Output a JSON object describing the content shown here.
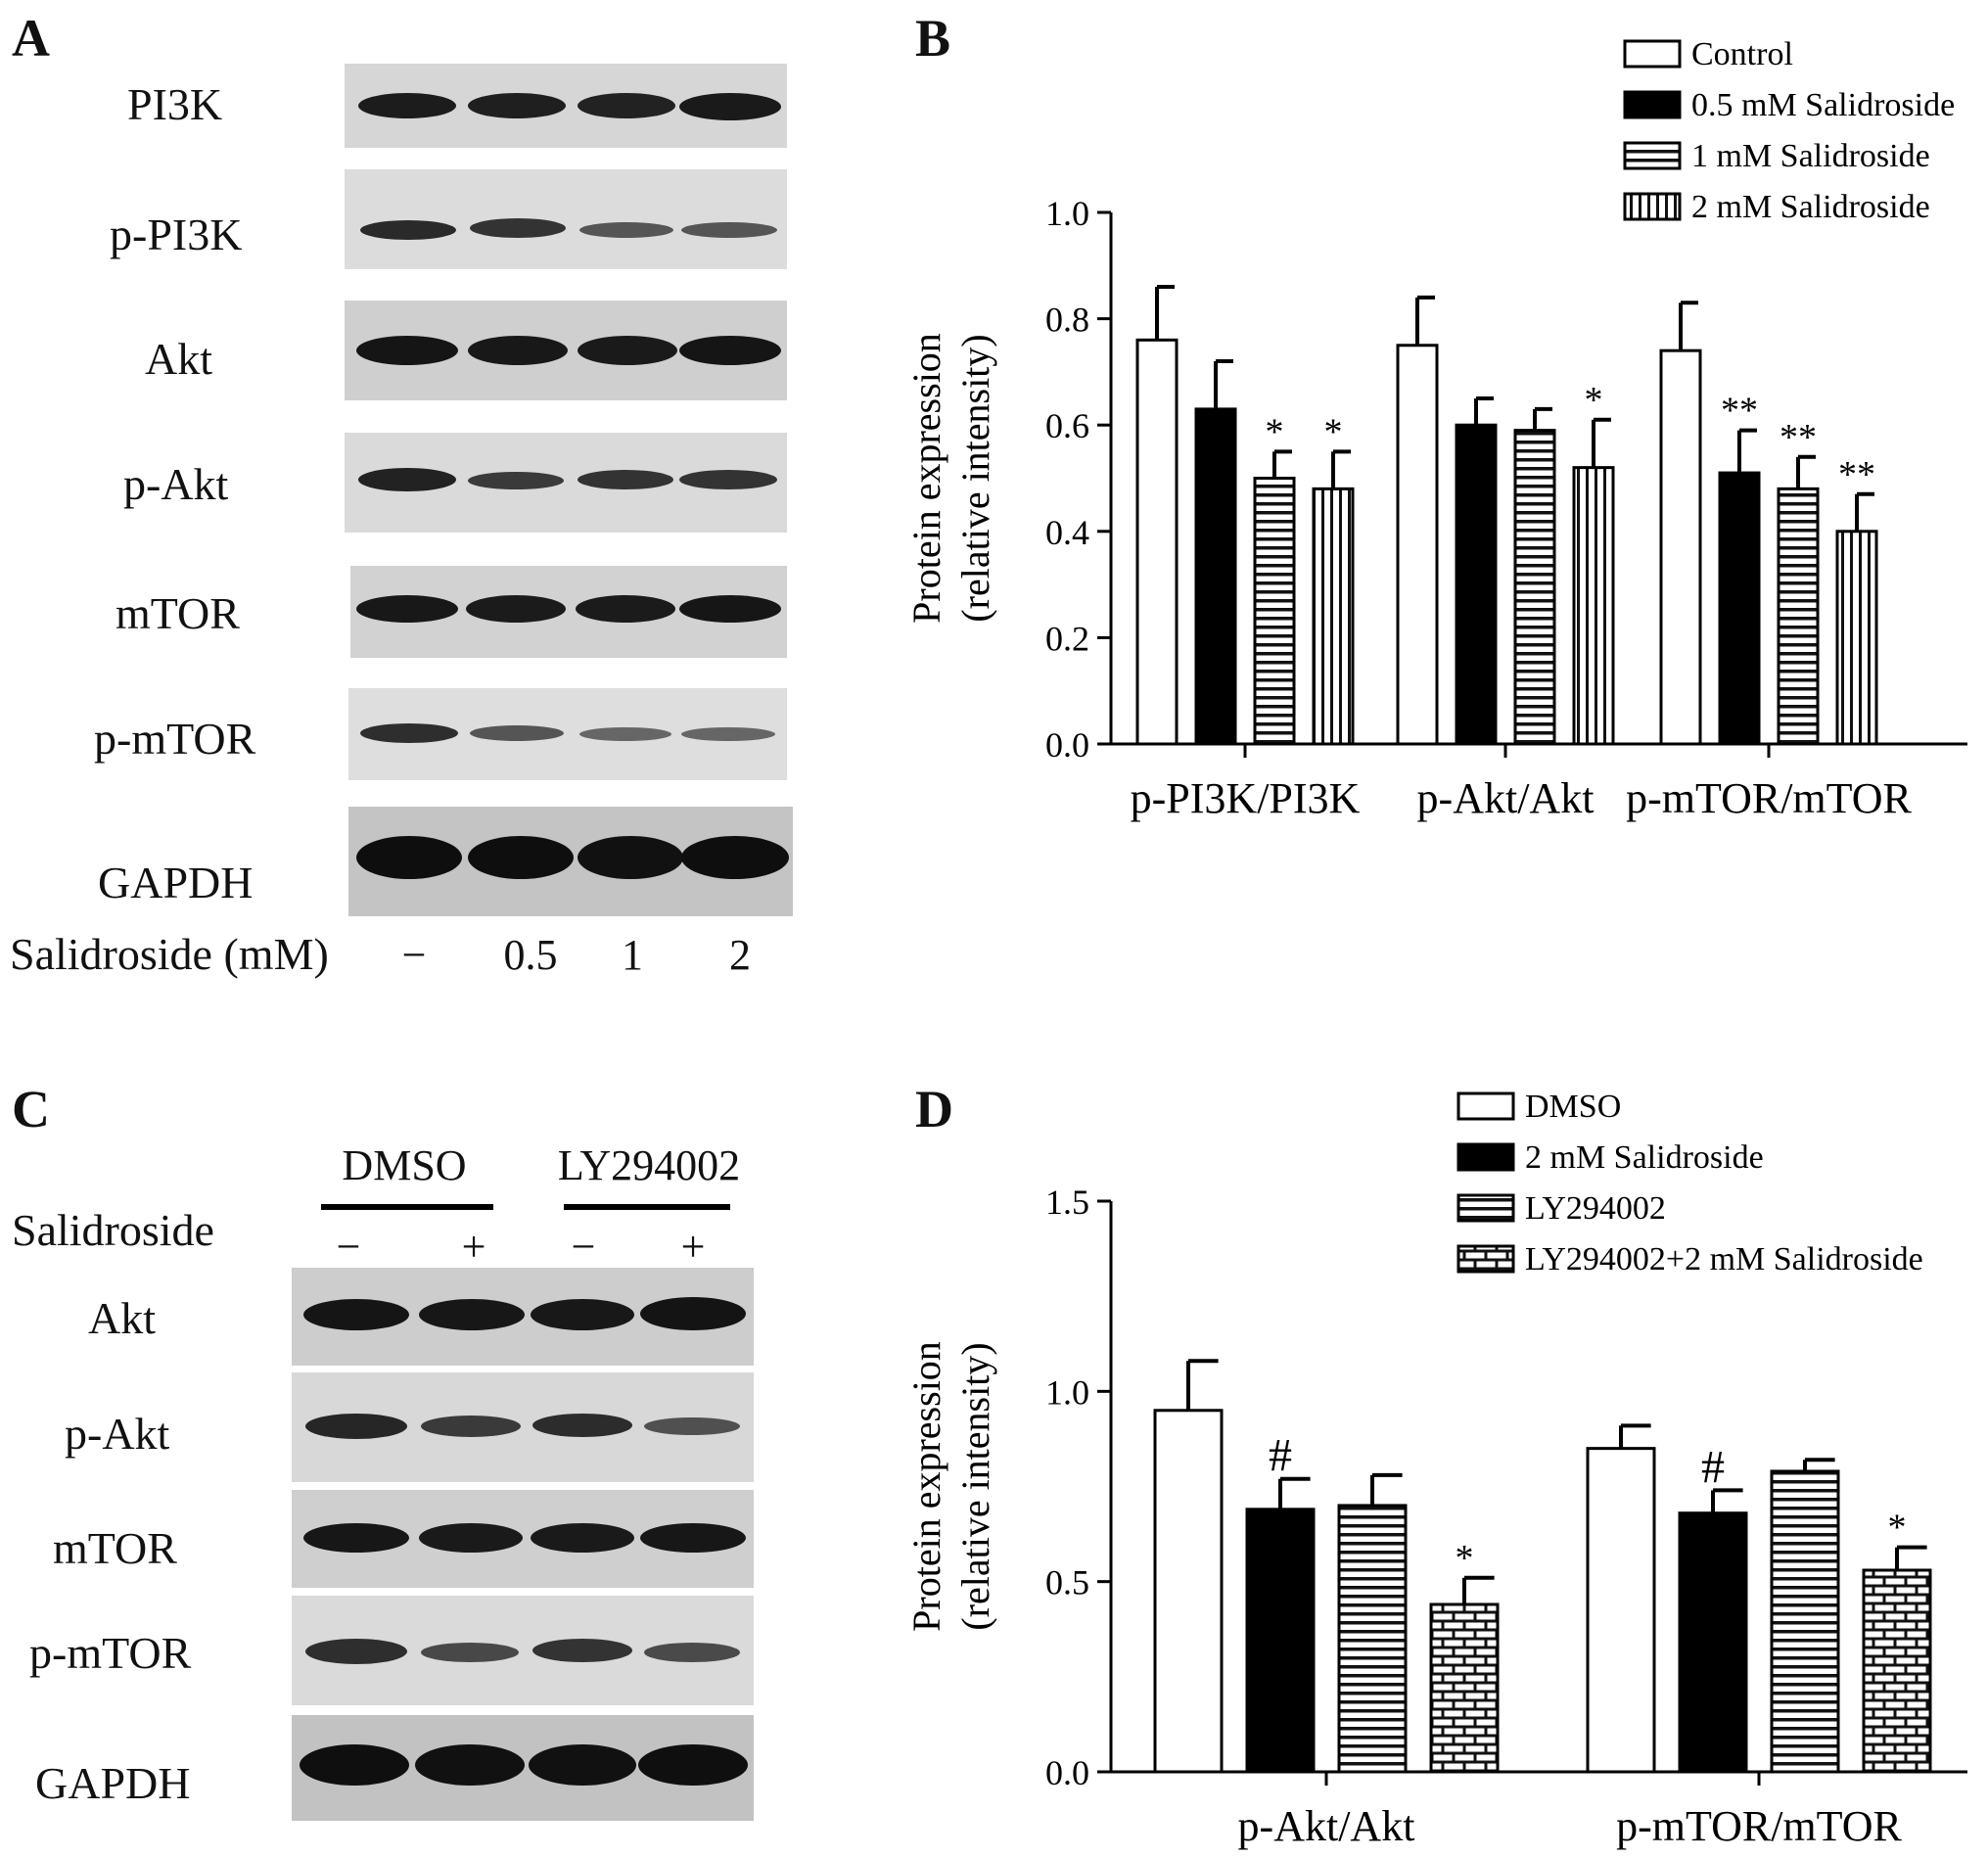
{
  "panels": {
    "a": {
      "letter": "A",
      "blots": [
        "PI3K",
        "p-PI3K",
        "Akt",
        "p-Akt",
        "mTOR",
        "p-mTOR",
        "GAPDH"
      ],
      "treatment_label": "Salidroside (mM)",
      "lanes": [
        "−",
        "0.5",
        "1",
        "2"
      ]
    },
    "c": {
      "letter": "C",
      "groups": [
        "DMSO",
        "LY294002"
      ],
      "treatment_label": "Salidroside",
      "lanes": [
        "−",
        "+",
        "−",
        "+"
      ],
      "blots": [
        "Akt",
        "p-Akt",
        "mTOR",
        "p-mTOR",
        "GAPDH"
      ]
    },
    "b": {
      "letter": "B"
    },
    "d": {
      "letter": "D"
    }
  },
  "chart_data": [
    {
      "type": "bar",
      "panel": "B",
      "ylabel": "Protein expression\n(relative intensity)",
      "ylim": [
        0,
        1.0
      ],
      "yticks": [
        "0.0",
        "0.2",
        "0.4",
        "0.6",
        "0.8",
        "1.0"
      ],
      "categories": [
        "p-PI3K/PI3K",
        "p-Akt/Akt",
        "p-mTOR/mTOR"
      ],
      "legend_position": "top-right",
      "series": [
        {
          "name": "Control",
          "fill": "open",
          "values": [
            0.76,
            0.75,
            0.74
          ],
          "errors": [
            0.1,
            0.09,
            0.09
          ],
          "marks": [
            "",
            "",
            ""
          ]
        },
        {
          "name": "0.5 mM Salidroside",
          "fill": "solid",
          "values": [
            0.63,
            0.6,
            0.51
          ],
          "errors": [
            0.09,
            0.05,
            0.08
          ],
          "marks": [
            "",
            "",
            "**"
          ]
        },
        {
          "name": "1 mM Salidroside",
          "fill": "hstripes",
          "values": [
            0.5,
            0.59,
            0.48
          ],
          "errors": [
            0.05,
            0.04,
            0.06
          ],
          "marks": [
            "*",
            "",
            "**"
          ]
        },
        {
          "name": "2 mM Salidroside",
          "fill": "vstripes",
          "values": [
            0.48,
            0.52,
            0.4
          ],
          "errors": [
            0.07,
            0.09,
            0.07
          ],
          "marks": [
            "*",
            "*",
            "**"
          ]
        }
      ]
    },
    {
      "type": "bar",
      "panel": "D",
      "ylabel": "Protein expression\n(relative intensity)",
      "ylim": [
        0,
        1.5
      ],
      "yticks": [
        "0.0",
        "0.5",
        "1.0",
        "1.5"
      ],
      "categories": [
        "p-Akt/Akt",
        "p-mTOR/mTOR"
      ],
      "legend_position": "top-right",
      "series": [
        {
          "name": "DMSO",
          "fill": "open",
          "values": [
            0.95,
            0.85
          ],
          "errors": [
            0.13,
            0.06
          ],
          "marks": [
            "",
            ""
          ]
        },
        {
          "name": "2 mM Salidroside",
          "fill": "solid",
          "values": [
            0.69,
            0.68
          ],
          "errors": [
            0.08,
            0.06
          ],
          "marks": [
            "#",
            "#"
          ]
        },
        {
          "name": "LY294002",
          "fill": "hstripes",
          "values": [
            0.7,
            0.79
          ],
          "errors": [
            0.08,
            0.03
          ],
          "marks": [
            "",
            ""
          ]
        },
        {
          "name": "LY294002+2 mM Salidroside",
          "fill": "brick",
          "values": [
            0.44,
            0.53
          ],
          "errors": [
            0.07,
            0.06
          ],
          "marks": [
            "*",
            "*"
          ]
        }
      ]
    }
  ]
}
